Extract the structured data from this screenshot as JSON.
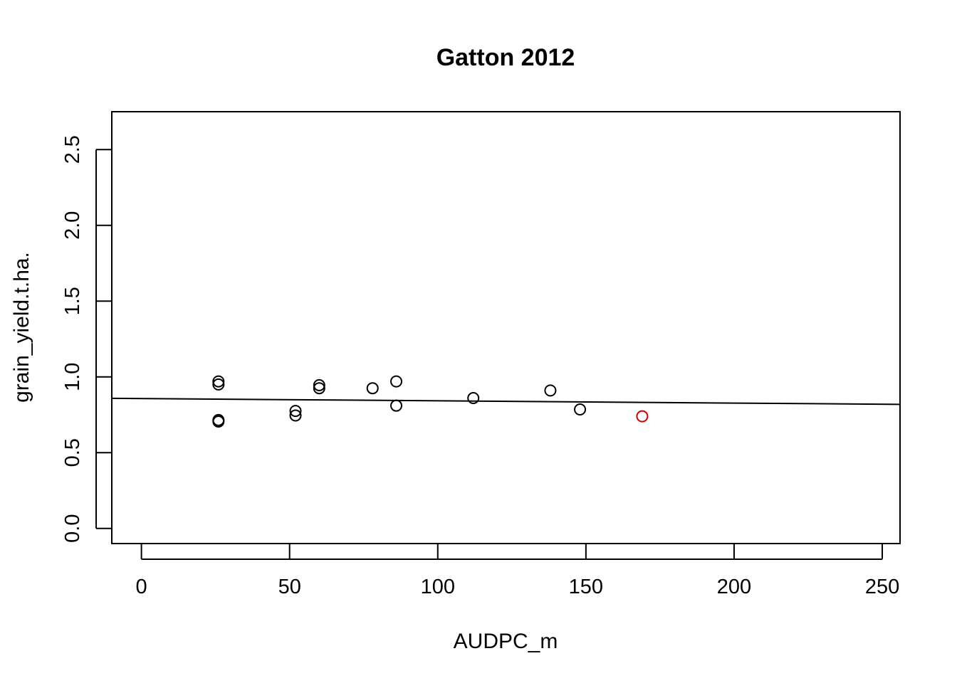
{
  "chart_data": {
    "type": "scatter",
    "title": "Gatton 2012",
    "xlabel": "AUDPC_m",
    "ylabel": "grain_yield.t.ha.",
    "xlim": [
      -10,
      256
    ],
    "ylim": [
      -0.1,
      2.75
    ],
    "xticks": [
      0,
      50,
      100,
      150,
      200,
      250
    ],
    "xtick_labels": [
      "0",
      "50",
      "100",
      "150",
      "200",
      "250"
    ],
    "yticks": [
      0.0,
      0.5,
      1.0,
      1.5,
      2.0,
      2.5
    ],
    "ytick_labels": [
      "0.0",
      "0.5",
      "1.0",
      "1.5",
      "2.0",
      "2.5"
    ],
    "grid": false,
    "point_color": "#000000",
    "highlight_color": "#cc0000",
    "points": [
      {
        "x": 26,
        "y": 0.97,
        "highlight": false
      },
      {
        "x": 26,
        "y": 0.95,
        "highlight": false
      },
      {
        "x": 26,
        "y": 0.715,
        "highlight": false
      },
      {
        "x": 26,
        "y": 0.705,
        "highlight": false
      },
      {
        "x": 52,
        "y": 0.775,
        "highlight": false
      },
      {
        "x": 52,
        "y": 0.745,
        "highlight": false
      },
      {
        "x": 60,
        "y": 0.945,
        "highlight": false
      },
      {
        "x": 60,
        "y": 0.925,
        "highlight": false
      },
      {
        "x": 78,
        "y": 0.925,
        "highlight": false
      },
      {
        "x": 86,
        "y": 0.97,
        "highlight": false
      },
      {
        "x": 86,
        "y": 0.81,
        "highlight": false
      },
      {
        "x": 112,
        "y": 0.86,
        "highlight": false
      },
      {
        "x": 138,
        "y": 0.91,
        "highlight": false
      },
      {
        "x": 148,
        "y": 0.785,
        "highlight": false
      },
      {
        "x": 169,
        "y": 0.74,
        "highlight": true
      }
    ],
    "regression_line": {
      "intercept": 0.857,
      "slope": -0.00015
    }
  }
}
